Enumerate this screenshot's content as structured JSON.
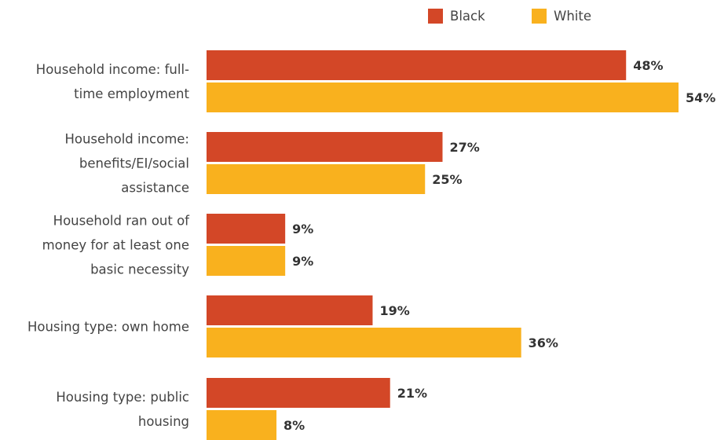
{
  "chart_data": {
    "type": "bar",
    "orientation": "horizontal",
    "categories": [
      [
        "Household income: full-",
        "time employment"
      ],
      [
        "Household income:",
        "benefits/EI/social",
        "assistance"
      ],
      [
        "Household ran out of",
        "money for at least one",
        "basic necessity"
      ],
      [
        "Housing type: own home"
      ],
      [
        "Housing type: public",
        "housing"
      ]
    ],
    "series": [
      {
        "name": "Black",
        "color": "#d34727",
        "values": [
          48,
          27,
          9,
          19,
          21
        ],
        "labels": [
          "48%",
          "27%",
          "9%",
          "19%",
          "21%"
        ]
      },
      {
        "name": "White",
        "color": "#f9b11e",
        "values": [
          54,
          25,
          9,
          36,
          8
        ],
        "labels": [
          "54%",
          "25%",
          "9%",
          "36%",
          "8%"
        ]
      }
    ],
    "value_unit": "%",
    "xlim": [
      0,
      54
    ],
    "legend_position": "top-right",
    "grid": false,
    "title": "",
    "xlabel": "",
    "ylabel": ""
  }
}
